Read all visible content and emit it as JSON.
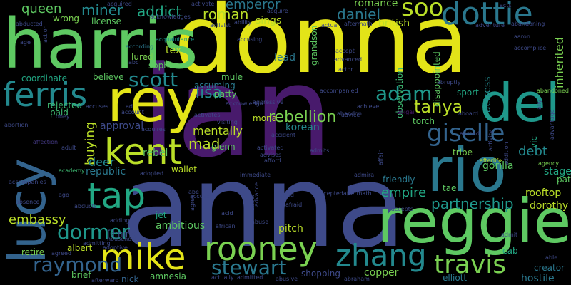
{
  "words": {
    "donna": "donna",
    "ian": "ian",
    "anna": "anna",
    "harris": "harris",
    "rey": "rey",
    "reggie": "reggie",
    "rio": "rio",
    "lucy": "lucy",
    "del": "del",
    "kent": "kent",
    "mike": "mike",
    "ferris": "ferris",
    "tap": "tap",
    "rooney": "rooney",
    "zhang": "zhang",
    "dottie": "dottie",
    "giselle": "giselle",
    "travis": "travis",
    "dormer": "dormer",
    "raymond": "raymond",
    "scott": "scott",
    "soo": "soo",
    "adam": "adam",
    "stewart": "stewart",
    "tanya": "tanya",
    "rebellion": "rebellion",
    "lisa": "lisa",
    "miner": "miner",
    "addict": "addict",
    "roman": "roman",
    "daniel": "daniel",
    "emperor": "emperor",
    "queen": "queen",
    "partnership": "partnership",
    "empire": "empire",
    "embassy": "embassy",
    "mad": "mad",
    "buying": "buying",
    "mentally": "mentally",
    "inherited": "inherited",
    "debt": "debt",
    "deer": "deer",
    "republic": "republic",
    "approval": "approval",
    "rebel": "rebel",
    "korean": "korean",
    "gorilla": "gorilla",
    "stage": "stage",
    "rooftop": "rooftop",
    "dorothy": "dorothy",
    "copper": "copper",
    "elliott": "elliott",
    "hostile": "hostile",
    "creator": "creator",
    "ambitious": "ambitious",
    "pitch": "pitch",
    "shopping": "shopping",
    "filming": "filming",
    "amnesia": "amnesia",
    "nick": "nick",
    "brief": "brief",
    "retire": "retire",
    "albert": "albert",
    "coordinate": "coordinate",
    "rejected": "rejected",
    "paid": "paid",
    "believe": "believe",
    "lured": "lured",
    "tex": "tex",
    "sophie": "sophie",
    "assuming": "assuming",
    "patty": "patty",
    "mule": "mule",
    "glenn": "glenn",
    "mona": "mona",
    "torch": "torch",
    "tribe": "tribe",
    "friendly": "friendly",
    "tae": "tae",
    "vic": "vic",
    "actress": "actress",
    "sport": "sport",
    "romance": "romance",
    "british": "british",
    "disappointed": "disappointed",
    "observation": "observation",
    "lead": "lead",
    "sings": "sings",
    "license": "license",
    "wrong": "wrong",
    "wallet": "wallet",
    "jet": "jet",
    "cab": "cab",
    "pat": "pat",
    "grandson": "grandson",
    "abigail": "abigail",
    "accident": "accident",
    "advice": "advice",
    "admits": "admits",
    "afterlife": "afterlife",
    "agency": "agency",
    "abandoned": "abandoned",
    "accompanied": "accompanied",
    "actor": "actor",
    "accept": "accept",
    "advanced": "advanced",
    "abduct": "abducted",
    "according": "according",
    "acquaintance": "acquaintance",
    "abruptly": "abruptly",
    "abroad": "abroad",
    "academy": "academy",
    "abortion": "abortion",
    "affection": "affection",
    "adopted": "adopted",
    "abducts": "abducts",
    "accompanies": "accompanies",
    "absence": "absence",
    "admitting": "admitting",
    "adoptive": "adoptive",
    "adding": "adding",
    "afterward": "afterward",
    "agreed": "agreed",
    "actually": "actually",
    "admitted": "admitted",
    "abusive": "abusive",
    "abraham": "abraham",
    "accepts": "accepts",
    "admiral": "admiral",
    "acceptedaftermath": "acceptedaftermath",
    "immediate": "immediate",
    "advises": "advises",
    "afford": "afford",
    "activated": "activated",
    "visiting": "visiting",
    "aggressive": "aggressive",
    "acknowledge": "acknowledge",
    "activates": "activates",
    "accuses": "accuses",
    "acquires": "acquires",
    "accusing": "accusing",
    "ability": "ability",
    "activist": "activist",
    "acquired": "acquired",
    "activate": "activate",
    "acquire": "acquire",
    "aftermath": "aftermath",
    "actual": "actual",
    "adventure": "adventure",
    "abandoning": "abandoning",
    "accomplice": "accomplice",
    "achieve": "achieve",
    "abandon": "abandon",
    "aboard": "aboard",
    "abuse": "abuse",
    "acid": "acid",
    "affect": "affect",
    "afraid": "afraid",
    "aged": "aged",
    "african": "african",
    "accused": "accused",
    "admist": "admit",
    "able": "able",
    "abe": "abe",
    "agree": "agree",
    "ago": "ago",
    "age": "age",
    "action": "action",
    "adult": "adult",
    "obey": "obey",
    "account": "account",
    "ad": "ad",
    "addition": "addition",
    "advantage": "advantage",
    "activity": "activity",
    "affair": "affair",
    "abc": "abc",
    "aaron": "aaron",
    "ally": "ally",
    "household": "household",
    "acknowledges": "acknowledges",
    "advance": "advance",
    "acts": "acts"
  },
  "colors": {
    "yellow": "#e3e418",
    "yellow_green": "#bade28",
    "light_green": "#7ad151",
    "green": "#5ec962",
    "mid_green": "#3fbc73",
    "teal_green": "#22a884",
    "teal": "#1f988b",
    "blue_teal": "#23898e",
    "steel": "#2a788e",
    "blue": "#33638d",
    "indigo": "#3e4a89",
    "dark_indigo": "#443983",
    "purple": "#482878",
    "deep_purple": "#481a6c",
    "darkest": "#440154"
  }
}
